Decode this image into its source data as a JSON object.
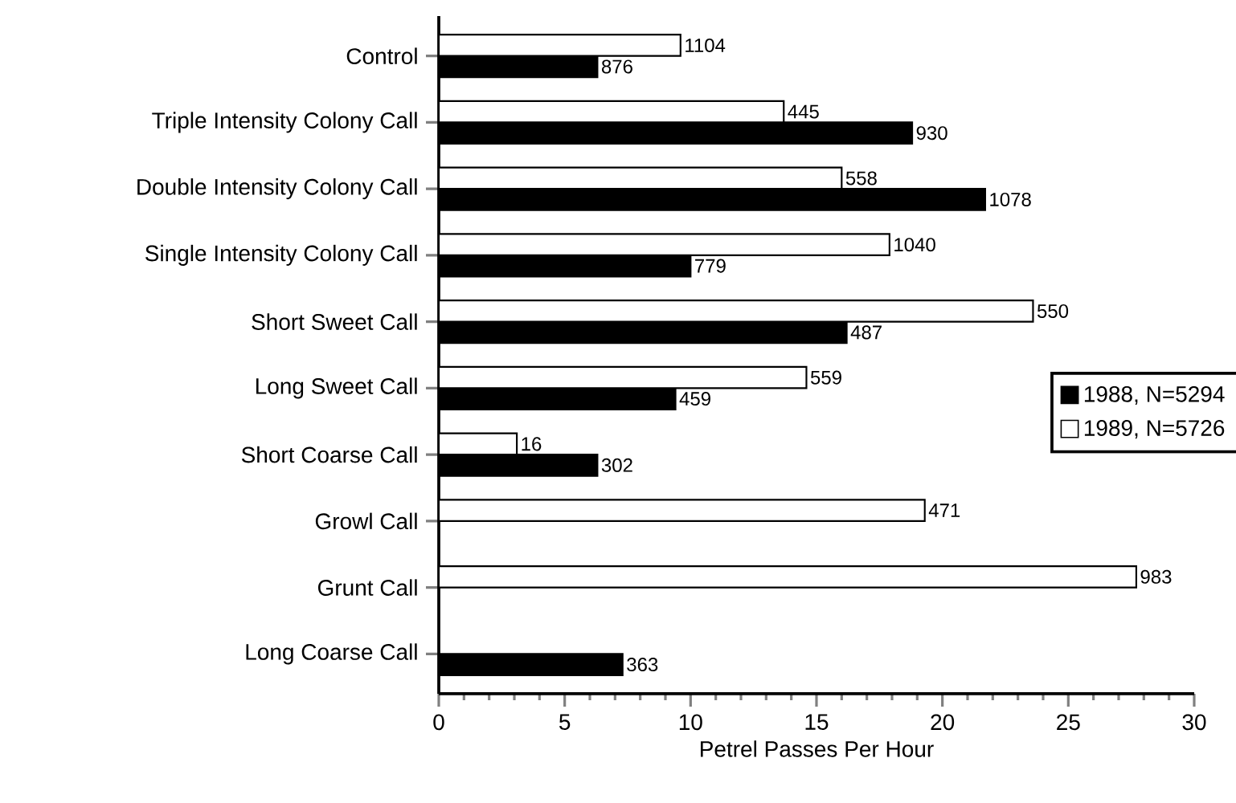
{
  "chart_data": {
    "type": "bar",
    "orientation": "horizontal",
    "xlabel": "Petrel Passes Per Hour",
    "categories": [
      "Control",
      "Triple Intensity Colony Call",
      "Double Intensity Colony Call",
      "Single Intensity Colony Call",
      "Short Sweet Call",
      "Long Sweet Call",
      "Short Coarse Call",
      "Growl Call",
      "Grunt Call",
      "Long Coarse Call"
    ],
    "series": [
      {
        "name": "1988, N=5294",
        "color": "#000000",
        "values": [
          6.3,
          18.8,
          21.7,
          10.0,
          16.2,
          9.4,
          6.3,
          null,
          null,
          7.3
        ]
      },
      {
        "name": "1989, N=5726",
        "color": "#ffffff",
        "values": [
          9.6,
          13.7,
          16.0,
          17.9,
          23.6,
          14.6,
          3.1,
          19.3,
          27.7,
          null
        ]
      }
    ],
    "xlim": [
      0,
      30
    ],
    "xticks": [
      0,
      5,
      10,
      15,
      20,
      25,
      30
    ],
    "legend": "right",
    "grid": false,
    "annotations": [
      {
        "text": "1104",
        "x": 9.6,
        "y": "Control"
      },
      {
        "text": "876",
        "x": 6.3,
        "y": "Control"
      },
      {
        "text": "445",
        "x": 13.7,
        "y": "Triple Intensity Colony Call"
      },
      {
        "text": "930",
        "x": 18.8,
        "y": "Triple Intensity Colony Call"
      },
      {
        "text": "558",
        "x": 16.0,
        "y": "Double Intensity Colony Call"
      },
      {
        "text": "1078",
        "x": 21.7,
        "y": "Double Intensity Colony Call"
      },
      {
        "text": "1040",
        "x": 17.9,
        "y": "Single Intensity Colony Call"
      },
      {
        "text": "779",
        "x": 10.0,
        "y": "Single Intensity Colony Call"
      },
      {
        "text": "550",
        "x": 23.6,
        "y": "Short Sweet Call"
      },
      {
        "text": "487",
        "x": 16.2,
        "y": "Short Sweet Call"
      },
      {
        "text": "559",
        "x": 14.6,
        "y": "Long Sweet Call"
      },
      {
        "text": "459",
        "x": 9.4,
        "y": "Long Sweet Call"
      },
      {
        "text": "16",
        "x": 3.1,
        "y": "Short Coarse Call"
      },
      {
        "text": "302",
        "x": 6.3,
        "y": "Short Coarse Call"
      },
      {
        "text": "471",
        "x": 19.3,
        "y": "Growl Call"
      },
      {
        "text": "983",
        "x": 27.7,
        "y": "Grunt Call"
      },
      {
        "text": "363",
        "x": 7.3,
        "y": "Long Coarse Call"
      }
    ]
  }
}
